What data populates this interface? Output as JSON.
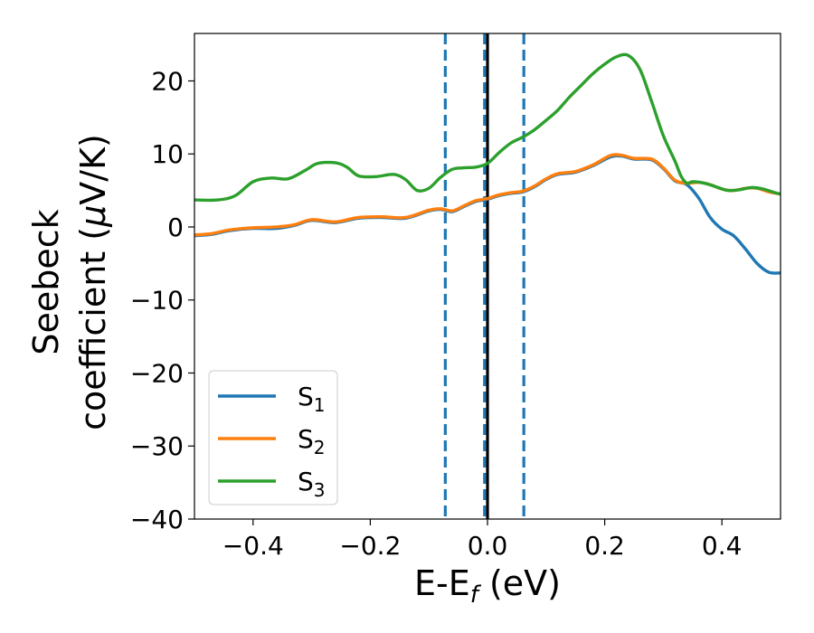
{
  "chart_data": {
    "type": "line",
    "xlabel": "E-E",
    "xlabel_sub": "f",
    "xlabel_unit": " (eV)",
    "ylabel_line1": "Seebeck",
    "ylabel_line2": "coefficient  (",
    "ylabel_mu": "μ",
    "ylabel_unit": "V/K)",
    "xlim": [
      -0.5,
      0.5
    ],
    "ylim": [
      -40,
      26.5
    ],
    "xticks": [
      -0.4,
      -0.2,
      0.0,
      0.2,
      0.4
    ],
    "xtick_labels": [
      "−0.4",
      "−0.2",
      "0.0",
      "0.2",
      "0.4"
    ],
    "yticks": [
      -40,
      -30,
      -20,
      -10,
      0,
      10,
      20
    ],
    "ytick_labels": [
      "−40",
      "−30",
      "−20",
      "−10",
      "0",
      "10",
      "20"
    ],
    "grid": false,
    "legend_position": "lower-left",
    "vlines": [
      {
        "x": -0.072,
        "style": "dashed",
        "color": "#1f77b4"
      },
      {
        "x": -0.005,
        "style": "dashed",
        "color": "#1f77b4"
      },
      {
        "x": 0.062,
        "style": "dashed",
        "color": "#1f77b4"
      },
      {
        "x": 0.0,
        "style": "solid",
        "color": "#000000"
      }
    ],
    "series": [
      {
        "name": "S",
        "sub": "1",
        "color": "#1f77b4",
        "points": [
          [
            -0.5,
            -1.2
          ],
          [
            -0.47,
            -1.0
          ],
          [
            -0.44,
            -0.5
          ],
          [
            -0.4,
            -0.2
          ],
          [
            -0.36,
            -0.2
          ],
          [
            -0.33,
            0.2
          ],
          [
            -0.3,
            0.9
          ],
          [
            -0.26,
            0.6
          ],
          [
            -0.22,
            1.2
          ],
          [
            -0.18,
            1.3
          ],
          [
            -0.14,
            1.2
          ],
          [
            -0.1,
            2.2
          ],
          [
            -0.08,
            2.4
          ],
          [
            -0.06,
            2.1
          ],
          [
            -0.04,
            2.8
          ],
          [
            -0.02,
            3.5
          ],
          [
            0.0,
            3.8
          ],
          [
            0.02,
            4.3
          ],
          [
            0.04,
            4.6
          ],
          [
            0.06,
            4.8
          ],
          [
            0.08,
            5.5
          ],
          [
            0.1,
            6.5
          ],
          [
            0.12,
            7.2
          ],
          [
            0.15,
            7.5
          ],
          [
            0.18,
            8.4
          ],
          [
            0.21,
            9.6
          ],
          [
            0.23,
            9.7
          ],
          [
            0.25,
            9.3
          ],
          [
            0.28,
            9.2
          ],
          [
            0.3,
            8.0
          ],
          [
            0.32,
            6.3
          ],
          [
            0.34,
            5.8
          ],
          [
            0.36,
            4.0
          ],
          [
            0.38,
            1.3
          ],
          [
            0.4,
            -0.3
          ],
          [
            0.42,
            -1.2
          ],
          [
            0.44,
            -3.0
          ],
          [
            0.46,
            -5.0
          ],
          [
            0.48,
            -6.2
          ],
          [
            0.5,
            -6.3
          ]
        ]
      },
      {
        "name": "S",
        "sub": "2",
        "color": "#ff7f0e",
        "points": [
          [
            -0.5,
            -1.1
          ],
          [
            -0.47,
            -0.9
          ],
          [
            -0.44,
            -0.4
          ],
          [
            -0.4,
            -0.1
          ],
          [
            -0.36,
            0.0
          ],
          [
            -0.33,
            0.3
          ],
          [
            -0.3,
            1.0
          ],
          [
            -0.26,
            0.7
          ],
          [
            -0.22,
            1.3
          ],
          [
            -0.18,
            1.4
          ],
          [
            -0.14,
            1.3
          ],
          [
            -0.1,
            2.3
          ],
          [
            -0.08,
            2.5
          ],
          [
            -0.06,
            2.2
          ],
          [
            -0.04,
            2.9
          ],
          [
            -0.02,
            3.6
          ],
          [
            0.0,
            3.9
          ],
          [
            0.02,
            4.4
          ],
          [
            0.04,
            4.7
          ],
          [
            0.06,
            4.9
          ],
          [
            0.08,
            5.6
          ],
          [
            0.1,
            6.6
          ],
          [
            0.12,
            7.3
          ],
          [
            0.15,
            7.6
          ],
          [
            0.18,
            8.5
          ],
          [
            0.21,
            9.8
          ],
          [
            0.23,
            9.8
          ],
          [
            0.25,
            9.4
          ],
          [
            0.28,
            9.3
          ],
          [
            0.3,
            8.1
          ],
          [
            0.32,
            6.4
          ],
          [
            0.34,
            6.0
          ],
          [
            0.36,
            6.1
          ],
          [
            0.38,
            5.8
          ],
          [
            0.4,
            5.2
          ],
          [
            0.42,
            5.0
          ],
          [
            0.44,
            5.3
          ],
          [
            0.46,
            5.3
          ],
          [
            0.48,
            4.8
          ],
          [
            0.5,
            4.5
          ]
        ]
      },
      {
        "name": "S",
        "sub": "3",
        "color": "#2ca02c",
        "points": [
          [
            -0.5,
            3.7
          ],
          [
            -0.46,
            3.7
          ],
          [
            -0.43,
            4.3
          ],
          [
            -0.4,
            6.2
          ],
          [
            -0.37,
            6.7
          ],
          [
            -0.34,
            6.6
          ],
          [
            -0.31,
            7.8
          ],
          [
            -0.29,
            8.7
          ],
          [
            -0.26,
            8.8
          ],
          [
            -0.24,
            8.2
          ],
          [
            -0.22,
            7.0
          ],
          [
            -0.19,
            6.9
          ],
          [
            -0.16,
            7.2
          ],
          [
            -0.14,
            6.5
          ],
          [
            -0.12,
            5.0
          ],
          [
            -0.1,
            5.3
          ],
          [
            -0.08,
            6.8
          ],
          [
            -0.06,
            7.9
          ],
          [
            -0.04,
            8.1
          ],
          [
            -0.02,
            8.2
          ],
          [
            0.0,
            8.7
          ],
          [
            0.02,
            10.2
          ],
          [
            0.04,
            11.5
          ],
          [
            0.06,
            12.3
          ],
          [
            0.08,
            13.3
          ],
          [
            0.1,
            14.6
          ],
          [
            0.12,
            16.0
          ],
          [
            0.14,
            17.8
          ],
          [
            0.16,
            19.4
          ],
          [
            0.18,
            21.0
          ],
          [
            0.2,
            22.3
          ],
          [
            0.22,
            23.3
          ],
          [
            0.24,
            23.5
          ],
          [
            0.26,
            21.6
          ],
          [
            0.28,
            17.2
          ],
          [
            0.3,
            12.5
          ],
          [
            0.32,
            9.0
          ],
          [
            0.33,
            7.0
          ],
          [
            0.34,
            6.0
          ],
          [
            0.35,
            6.2
          ],
          [
            0.37,
            6.0
          ],
          [
            0.39,
            5.5
          ],
          [
            0.41,
            5.0
          ],
          [
            0.43,
            5.1
          ],
          [
            0.45,
            5.4
          ],
          [
            0.47,
            5.2
          ],
          [
            0.49,
            4.7
          ],
          [
            0.5,
            4.5
          ]
        ]
      }
    ]
  }
}
